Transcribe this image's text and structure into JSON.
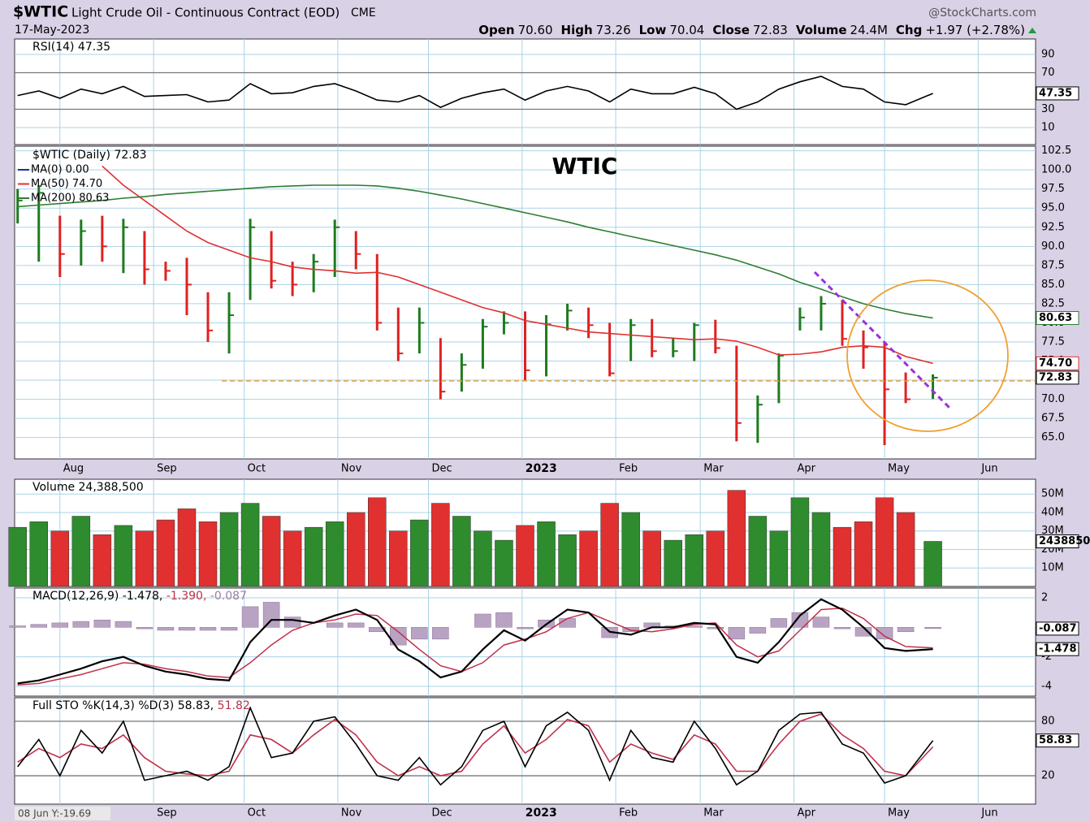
{
  "header": {
    "symbol": "$WTIC",
    "name": "Light Crude Oil - Continuous Contract (EOD)",
    "exchange": "CME",
    "source": "@StockCharts.com",
    "date": "17-May-2023",
    "quote": [
      {
        "label": "Open",
        "value": "70.60"
      },
      {
        "label": "High",
        "value": "73.26"
      },
      {
        "label": "Low",
        "value": "70.04"
      },
      {
        "label": "Close",
        "value": "72.83"
      },
      {
        "label": "Volume",
        "value": "24.4M"
      },
      {
        "label": "Chg",
        "value": "+1.97 (+2.78%)"
      }
    ]
  },
  "cursor_readout": "08 Jun Y:-19.69",
  "xlim": [
    "2022-07-17",
    "2023-06-20"
  ],
  "xticks": [
    {
      "value": "2022-08-01",
      "label": "Aug"
    },
    {
      "value": "2022-09-01",
      "label": "Sep"
    },
    {
      "value": "2022-10-01",
      "label": "Oct"
    },
    {
      "value": "2022-11-01",
      "label": "Nov"
    },
    {
      "value": "2022-12-01",
      "label": "Dec"
    },
    {
      "value": "2023-01-01",
      "label": "2023"
    },
    {
      "value": "2023-02-01",
      "label": "Feb"
    },
    {
      "value": "2023-03-01",
      "label": "Mar"
    },
    {
      "value": "2023-04-01",
      "label": "Apr"
    },
    {
      "value": "2023-05-01",
      "label": "May"
    },
    {
      "value": "2023-06-01",
      "label": "Jun"
    }
  ],
  "x": [
    "2022-07-18",
    "2022-07-25",
    "2022-08-01",
    "2022-08-08",
    "2022-08-15",
    "2022-08-22",
    "2022-08-29",
    "2022-09-05",
    "2022-09-12",
    "2022-09-19",
    "2022-09-26",
    "2022-10-03",
    "2022-10-10",
    "2022-10-17",
    "2022-10-24",
    "2022-10-31",
    "2022-11-07",
    "2022-11-14",
    "2022-11-21",
    "2022-11-28",
    "2022-12-05",
    "2022-12-12",
    "2022-12-19",
    "2022-12-26",
    "2023-01-02",
    "2023-01-09",
    "2023-01-16",
    "2023-01-23",
    "2023-01-30",
    "2023-02-06",
    "2023-02-13",
    "2023-02-20",
    "2023-02-27",
    "2023-03-06",
    "2023-03-13",
    "2023-03-20",
    "2023-03-27",
    "2023-04-03",
    "2023-04-10",
    "2023-04-17",
    "2023-04-24",
    "2023-05-01",
    "2023-05-08",
    "2023-05-17"
  ],
  "chart_data": [
    {
      "type": "line",
      "label_parts": [
        {
          "text": "RSI(14) 47.35",
          "color": "#000000"
        }
      ],
      "ylim": [
        -8.7,
        106.9
      ],
      "yticks": [
        90,
        70,
        30,
        10
      ],
      "bands": [
        70,
        30
      ],
      "series": [
        {
          "color": "#000000",
          "values": [
            45,
            50,
            42,
            52,
            47,
            55,
            44,
            45,
            46,
            38,
            40,
            58,
            47,
            48,
            55,
            58,
            50,
            40,
            38,
            45,
            32,
            42,
            48,
            52,
            40,
            50,
            55,
            50,
            38,
            52,
            47,
            47,
            54,
            47,
            30,
            38,
            52,
            60,
            66,
            55,
            52,
            38,
            35,
            47.35
          ]
        }
      ],
      "badges": [
        {
          "value": 47.35,
          "label": "47.35",
          "color": "#000000"
        }
      ]
    },
    {
      "type": "ohlc",
      "title": "$WTIC (Daily) 72.83",
      "annotation": "WTIC",
      "up_color": "#1e7b1e",
      "down_color": "#e02020",
      "ylim": [
        62.2,
        103.1
      ],
      "yticks": [
        102.5,
        {
          "value": 100,
          "label": "100.0"
        },
        97.5,
        {
          "value": 95,
          "label": "95.0"
        },
        92.5,
        {
          "value": 90,
          "label": "90.0"
        },
        87.5,
        {
          "value": 85,
          "label": "85.0"
        },
        82.5,
        {
          "value": 80,
          "label": "80.0"
        },
        77.5,
        {
          "value": 75,
          "label": "75.0"
        },
        72.5,
        {
          "value": 70,
          "label": "70.0"
        },
        67.5,
        {
          "value": 65,
          "label": "65.0"
        }
      ],
      "high": [
        97.5,
        98,
        94,
        93.5,
        94,
        93.6,
        92,
        88,
        88.5,
        84,
        84,
        93.6,
        92,
        88,
        89,
        93.5,
        92,
        89,
        82,
        82,
        78,
        76,
        80.5,
        81.5,
        81.5,
        81,
        82.5,
        82,
        80,
        80.5,
        80.5,
        78,
        80,
        80.4,
        77,
        70.5,
        76,
        82,
        83.5,
        83,
        79,
        77.5,
        73.5,
        73.26
      ],
      "low": [
        93,
        88,
        86,
        87.5,
        88,
        86.5,
        85,
        85.5,
        81,
        77.5,
        76,
        83,
        84.5,
        83.5,
        84,
        86,
        87,
        79,
        75,
        76,
        70,
        71,
        74,
        78.5,
        72.5,
        73,
        79,
        78,
        73,
        75,
        75.5,
        75.5,
        75,
        76,
        64.5,
        64.3,
        69.5,
        79,
        79,
        77,
        74,
        64,
        69.5,
        70.04
      ],
      "close": [
        96,
        97,
        89,
        92,
        90,
        92.5,
        87,
        86.8,
        85,
        79,
        81,
        92.5,
        85.5,
        85,
        88,
        92.5,
        89,
        80,
        76,
        80,
        71,
        74.5,
        79.5,
        80,
        73.8,
        79.8,
        81.6,
        79.7,
        73.4,
        79.7,
        76.3,
        76.3,
        79.7,
        76.7,
        66.9,
        69.3,
        75.7,
        80.7,
        82.5,
        77.9,
        76.8,
        71.3,
        70,
        72.83
      ],
      "legend_only": {
        "name": "MA(0) 0.00",
        "color": "#1f2f9a"
      },
      "series": [
        {
          "name": "MA(50) 74.70",
          "color": "#e03030",
          "values": [
            null,
            null,
            null,
            null,
            100.5,
            98,
            96,
            94,
            92,
            90.5,
            89.5,
            88.5,
            88,
            87.3,
            87,
            86.8,
            86.5,
            86.6,
            86,
            85,
            84,
            83,
            82,
            81.3,
            80.3,
            79.8,
            79.3,
            78.8,
            78.6,
            78.4,
            78.2,
            78,
            77.8,
            77.9,
            77.6,
            76.8,
            75.8,
            75.9,
            76.2,
            76.8,
            77,
            76.8,
            75.6,
            74.7
          ]
        },
        {
          "name": "MA(200) 80.63",
          "color": "#2e7d32",
          "values": [
            95.2,
            95.4,
            95.6,
            95.8,
            96,
            96.3,
            96.5,
            96.8,
            97,
            97.2,
            97.4,
            97.6,
            97.8,
            97.9,
            98,
            98,
            98,
            97.9,
            97.6,
            97.2,
            96.7,
            96.2,
            95.6,
            95,
            94.4,
            93.8,
            93.2,
            92.5,
            91.9,
            91.3,
            90.7,
            90.1,
            89.5,
            88.9,
            88.2,
            87.3,
            86.4,
            85.3,
            84.4,
            83.4,
            82.5,
            81.8,
            81.2,
            80.63
          ]
        }
      ],
      "badges": [
        {
          "value": 80.63,
          "label": "80.63",
          "color": "#2e7d32"
        },
        {
          "value": 74.7,
          "label": "74.70",
          "color": "#e03030"
        },
        {
          "value": 72.83,
          "label": "72.83",
          "color": "#000000"
        }
      ]
    },
    {
      "type": "volume",
      "label_parts": [
        {
          "text": "Volume 24,388,500",
          "color": "#000000"
        }
      ],
      "ylim": [
        0,
        58000000
      ],
      "yticks": [
        {
          "value": 50000000,
          "label": "50M"
        },
        {
          "value": 40000000,
          "label": "40M"
        },
        {
          "value": 30000000,
          "label": "30M"
        },
        {
          "value": 20000000,
          "label": "20M"
        },
        {
          "value": 10000000,
          "label": "10M"
        }
      ],
      "values": [
        32000000,
        35000000,
        30000000,
        38000000,
        28000000,
        33000000,
        30000000,
        36000000,
        42000000,
        35000000,
        40000000,
        45000000,
        38000000,
        30000000,
        32000000,
        35000000,
        40000000,
        48000000,
        30000000,
        36000000,
        45000000,
        38000000,
        30000000,
        25000000,
        33000000,
        35000000,
        28000000,
        30000000,
        45000000,
        40000000,
        30000000,
        25000000,
        28000000,
        30000000,
        52000000,
        38000000,
        30000000,
        48000000,
        40000000,
        32000000,
        35000000,
        48000000,
        40000000,
        24388500
      ],
      "badges": [
        {
          "value": 24388500,
          "label": "24388500",
          "color": "#000000"
        }
      ]
    },
    {
      "type": "macd",
      "label_parts": [
        {
          "text": "MACD(12,26,9) -1.478,",
          "color": "#000000"
        },
        {
          "text": " -1.390,",
          "color": "#c0304a"
        },
        {
          "text": " -0.087",
          "color": "#9b7fa3"
        }
      ],
      "ylim": [
        -4.66,
        2.66
      ],
      "yticks": [
        2,
        -2,
        -4
      ],
      "histogram": {
        "color": "#b9a3c3",
        "values": [
          0.1,
          0.2,
          0.3,
          0.4,
          0.5,
          0.4,
          -0.1,
          -0.2,
          -0.2,
          -0.2,
          -0.2,
          1.4,
          1.7,
          0.7,
          0.0,
          0.3,
          0.3,
          -0.3,
          -1.2,
          -0.8,
          -0.8,
          0.0,
          0.9,
          1.0,
          -0.1,
          0.5,
          0.6,
          0.0,
          -0.7,
          -0.3,
          0.3,
          0.1,
          0.1,
          -0.1,
          -0.8,
          -0.4,
          0.6,
          1.0,
          0.7,
          -0.1,
          -0.6,
          -0.8,
          -0.3,
          -0.087
        ]
      },
      "series": [
        {
          "color": "#c0304a",
          "values": [
            -3.9,
            -3.8,
            -3.5,
            -3.2,
            -2.8,
            -2.4,
            -2.5,
            -2.8,
            -3.0,
            -3.3,
            -3.4,
            -2.4,
            -1.2,
            -0.2,
            0.3,
            0.5,
            0.9,
            0.8,
            -0.3,
            -1.5,
            -2.6,
            -3.0,
            -2.4,
            -1.2,
            -0.8,
            -0.3,
            0.6,
            1.0,
            0.4,
            -0.2,
            -0.3,
            -0.1,
            0.2,
            0.3,
            -1.2,
            -2.0,
            -1.6,
            -0.2,
            1.2,
            1.3,
            0.6,
            -0.6,
            -1.3,
            -1.39
          ]
        },
        {
          "color": "#000000",
          "values": [
            -3.8,
            -3.6,
            -3.2,
            -2.8,
            -2.3,
            -2.0,
            -2.6,
            -3.0,
            -3.2,
            -3.5,
            -3.6,
            -1.0,
            0.5,
            0.5,
            0.3,
            0.8,
            1.2,
            0.5,
            -1.5,
            -2.3,
            -3.4,
            -3.0,
            -1.5,
            -0.2,
            -0.9,
            0.2,
            1.2,
            1.0,
            -0.3,
            -0.5,
            0.0,
            0.0,
            0.3,
            0.2,
            -2.0,
            -2.4,
            -1.0,
            0.8,
            1.9,
            1.2,
            0.0,
            -1.4,
            -1.6,
            -1.478
          ]
        }
      ],
      "badges": [
        {
          "value": -0.087,
          "label": "-0.087",
          "color": "#000000"
        },
        {
          "value": -1.478,
          "label": "-1.478",
          "color": "#000000"
        }
      ]
    },
    {
      "type": "line",
      "label_parts": [
        {
          "text": "Full STO %K(14,3) %D(3) 58.83,",
          "color": "#000000"
        },
        {
          "text": " 51.82",
          "color": "#c0304a"
        }
      ],
      "ylim": [
        -11.3,
        106
      ],
      "yticks": [
        80,
        20
      ],
      "bands": [
        80,
        20
      ],
      "series": [
        {
          "color": "#c0304a",
          "values": [
            35,
            50,
            40,
            55,
            50,
            65,
            40,
            25,
            22,
            20,
            25,
            65,
            60,
            45,
            65,
            82,
            65,
            35,
            20,
            30,
            20,
            25,
            55,
            75,
            45,
            60,
            82,
            75,
            35,
            55,
            45,
            38,
            65,
            55,
            25,
            25,
            55,
            80,
            88,
            65,
            50,
            25,
            20,
            51.82
          ]
        },
        {
          "color": "#000000",
          "values": [
            30,
            60,
            20,
            70,
            45,
            80,
            15,
            20,
            25,
            15,
            30,
            95,
            40,
            45,
            80,
            85,
            55,
            20,
            15,
            40,
            10,
            30,
            70,
            80,
            30,
            75,
            90,
            70,
            15,
            70,
            40,
            35,
            80,
            50,
            10,
            25,
            70,
            88,
            90,
            55,
            45,
            12,
            20,
            58.83
          ]
        }
      ],
      "badges": [
        {
          "value": 58.83,
          "label": "58.83",
          "color": "#000000"
        }
      ]
    }
  ]
}
